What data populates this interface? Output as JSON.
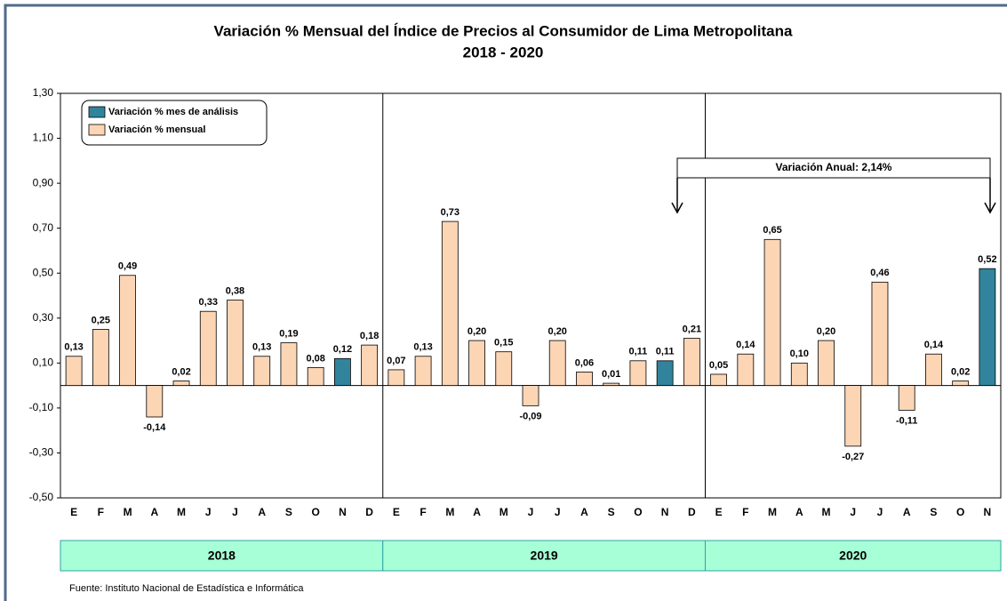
{
  "chart_data": {
    "type": "bar",
    "title": "Variación % Mensual del Índice de Precios al Consumidor de Lima Metropolitana",
    "subtitle": "2018 - 2020",
    "categories": [
      "E",
      "F",
      "M",
      "A",
      "M",
      "J",
      "J",
      "A",
      "S",
      "O",
      "N",
      "D",
      "E",
      "F",
      "M",
      "A",
      "M",
      "J",
      "J",
      "A",
      "S",
      "O",
      "N",
      "D",
      "E",
      "F",
      "M",
      "A",
      "M",
      "J",
      "J",
      "A",
      "S",
      "O",
      "N"
    ],
    "years": [
      "2018",
      "2019",
      "2020"
    ],
    "values": [
      0.13,
      0.25,
      0.49,
      -0.14,
      0.02,
      0.33,
      0.38,
      0.13,
      0.19,
      0.08,
      0.12,
      0.18,
      0.07,
      0.13,
      0.73,
      0.2,
      0.15,
      -0.09,
      0.2,
      0.06,
      0.01,
      0.11,
      0.11,
      0.21,
      0.05,
      0.14,
      0.65,
      0.1,
      0.2,
      -0.27,
      0.46,
      -0.11,
      0.14,
      0.02,
      0.52
    ],
    "value_labels": [
      "0,13",
      "0,25",
      "0,49",
      "-0,14",
      "0,02",
      "0,33",
      "0,38",
      "0,13",
      "0,19",
      "0,08",
      "0,12",
      "0,18",
      "0,07",
      "0,13",
      "0,73",
      "0,20",
      "0,15",
      "-0,09",
      "0,20",
      "0,06",
      "0,01",
      "0,11",
      "0,11",
      "0,21",
      "0,05",
      "0,14",
      "0,65",
      "0,10",
      "0,20",
      "-0,27",
      "0,46",
      "-0,11",
      "0,14",
      "0,02",
      "0,52"
    ],
    "colors": [
      "#fcd5b5",
      "#fcd5b5",
      "#fcd5b5",
      "#fcd5b5",
      "#fcd5b5",
      "#fcd5b5",
      "#fcd5b5",
      "#fcd5b5",
      "#fcd5b5",
      "#fcd5b5",
      "#31849b",
      "#fcd5b5",
      "#fcd5b5",
      "#fcd5b5",
      "#fcd5b5",
      "#fcd5b5",
      "#fcd5b5",
      "#fcd5b5",
      "#fcd5b5",
      "#fcd5b5",
      "#fcd5b5",
      "#fcd5b5",
      "#31849b",
      "#fcd5b5",
      "#fcd5b5",
      "#fcd5b5",
      "#fcd5b5",
      "#fcd5b5",
      "#fcd5b5",
      "#fcd5b5",
      "#fcd5b5",
      "#fcd5b5",
      "#fcd5b5",
      "#fcd5b5",
      "#31849b"
    ],
    "legend": [
      {
        "name": "Variación % mes de análisis",
        "color": "#31849b"
      },
      {
        "name": "Variación % mensual",
        "color": "#fcd5b5"
      }
    ],
    "annotation": "Variación Anual: 2,14%",
    "source": "Fuente: Instituto  Nacional de Estadística  e Informática",
    "ylim": [
      -0.5,
      1.3
    ],
    "yticks": [
      {
        "value": -0.5,
        "label": "-0,50"
      },
      {
        "value": -0.3,
        "label": "-0,30"
      },
      {
        "value": -0.1,
        "label": "-0,10"
      },
      {
        "value": 0.1,
        "label": "0,10"
      },
      {
        "value": 0.3,
        "label": "0,30"
      },
      {
        "value": 0.5,
        "label": "0,50"
      },
      {
        "value": 0.7,
        "label": "0,70"
      },
      {
        "value": 0.9,
        "label": "0,90"
      },
      {
        "value": 1.1,
        "label": "1,10"
      },
      {
        "value": 1.3,
        "label": "1,30"
      }
    ]
  }
}
